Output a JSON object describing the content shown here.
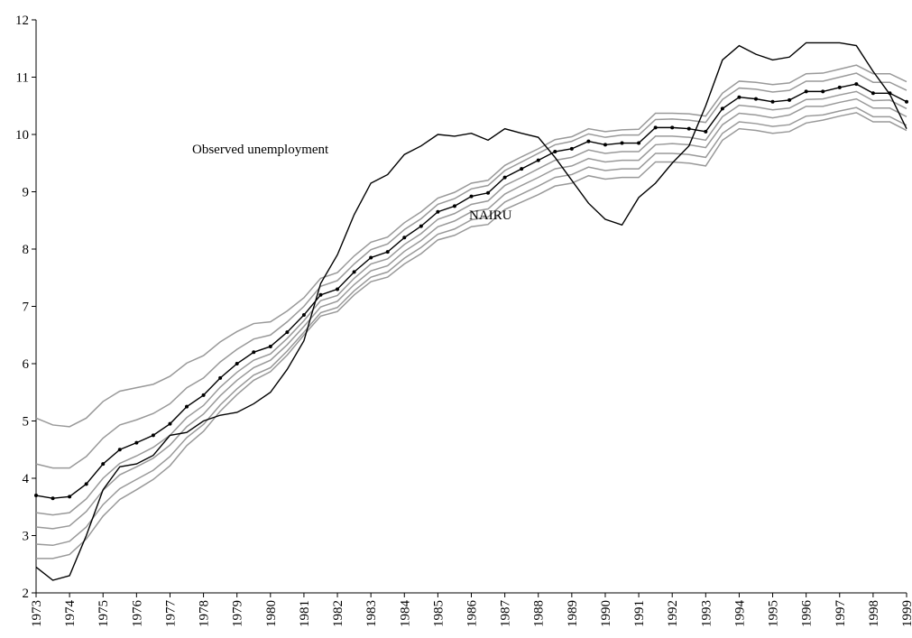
{
  "chart_data": {
    "type": "line",
    "x": [
      1973,
      1973.5,
      1974,
      1974.5,
      1975,
      1975.5,
      1976,
      1976.5,
      1977,
      1977.5,
      1978,
      1978.5,
      1979,
      1979.5,
      1980,
      1980.5,
      1981,
      1981.5,
      1982,
      1982.5,
      1983,
      1983.5,
      1984,
      1984.5,
      1985,
      1985.5,
      1986,
      1986.5,
      1987,
      1987.5,
      1988,
      1988.5,
      1989,
      1989.5,
      1990,
      1990.5,
      1991,
      1991.5,
      1992,
      1992.5,
      1993,
      1993.5,
      1994,
      1994.5,
      1995,
      1995.5,
      1996,
      1996.5,
      1997,
      1997.5,
      1998,
      1998.5,
      1999
    ],
    "xlim": [
      1973,
      1999
    ],
    "xticks": [
      1973,
      1974,
      1975,
      1976,
      1977,
      1978,
      1979,
      1980,
      1981,
      1982,
      1983,
      1984,
      1985,
      1986,
      1987,
      1988,
      1989,
      1990,
      1991,
      1992,
      1993,
      1994,
      1995,
      1996,
      1997,
      1998,
      1999
    ],
    "ylim": [
      2,
      12
    ],
    "yticks": [
      2,
      3,
      4,
      5,
      6,
      7,
      8,
      9,
      10,
      11,
      12
    ],
    "series": [
      {
        "name": "Observed unemployment",
        "color": "#000000",
        "values": [
          2.45,
          2.22,
          2.3,
          3.0,
          3.8,
          4.2,
          4.25,
          4.4,
          4.75,
          4.8,
          5.0,
          5.1,
          5.15,
          5.3,
          5.5,
          5.9,
          6.4,
          7.4,
          7.9,
          8.6,
          9.15,
          9.3,
          9.65,
          9.8,
          10.0,
          9.97,
          10.02,
          9.9,
          10.1,
          10.02,
          9.95,
          9.6,
          9.2,
          8.8,
          8.52,
          8.42,
          8.9,
          9.15,
          9.5,
          9.8,
          10.5,
          11.3,
          11.55,
          11.4,
          11.3,
          11.35,
          11.6,
          11.6,
          11.6,
          11.55,
          11.1,
          10.7,
          10.1
        ]
      },
      {
        "name": "NAIRU",
        "color": "#000000",
        "markers": true,
        "values": [
          3.7,
          3.65,
          3.68,
          3.9,
          4.25,
          4.5,
          4.62,
          4.75,
          4.95,
          5.25,
          5.45,
          5.75,
          6.0,
          6.2,
          6.3,
          6.55,
          6.85,
          7.2,
          7.3,
          7.6,
          7.85,
          7.95,
          8.2,
          8.4,
          8.65,
          8.75,
          8.92,
          8.98,
          9.25,
          9.4,
          9.55,
          9.7,
          9.75,
          9.88,
          9.82,
          9.85,
          9.85,
          10.12,
          10.12,
          10.1,
          10.05,
          10.45,
          10.65,
          10.62,
          10.57,
          10.6,
          10.75,
          10.75,
          10.82,
          10.88,
          10.72,
          10.72,
          10.57
        ]
      },
      {
        "color": "#999999",
        "values": [
          5.05,
          4.93,
          4.9,
          5.05,
          5.34,
          5.52,
          5.58,
          5.64,
          5.78,
          6.01,
          6.14,
          6.38,
          6.56,
          6.7,
          6.73,
          6.92,
          7.15,
          7.49,
          7.59,
          7.88,
          8.12,
          8.21,
          8.46,
          8.65,
          8.89,
          8.99,
          9.15,
          9.2,
          9.46,
          9.61,
          9.75,
          9.91,
          9.96,
          10.1,
          10.05,
          10.08,
          10.09,
          10.37,
          10.37,
          10.36,
          10.32,
          10.72,
          10.93,
          10.91,
          10.87,
          10.9,
          11.06,
          11.07,
          11.14,
          11.21,
          11.06,
          11.06,
          10.92
        ]
      },
      {
        "color": "#999999",
        "values": [
          4.25,
          4.18,
          4.18,
          4.38,
          4.7,
          4.93,
          5.02,
          5.13,
          5.3,
          5.58,
          5.75,
          6.03,
          6.25,
          6.43,
          6.5,
          6.73,
          7.0,
          7.35,
          7.45,
          7.74,
          7.99,
          8.09,
          8.34,
          8.53,
          8.78,
          8.88,
          9.05,
          9.11,
          9.37,
          9.52,
          9.67,
          9.82,
          9.88,
          10.01,
          9.95,
          9.99,
          9.99,
          10.26,
          10.27,
          10.25,
          10.21,
          10.61,
          10.81,
          10.79,
          10.74,
          10.77,
          10.93,
          10.93,
          11.0,
          11.07,
          10.91,
          10.91,
          10.77
        ]
      },
      {
        "color": "#999999",
        "values": [
          3.4,
          3.36,
          3.4,
          3.64,
          4.0,
          4.26,
          4.39,
          4.54,
          4.75,
          5.06,
          5.27,
          5.59,
          5.85,
          6.06,
          6.17,
          6.44,
          6.75,
          7.1,
          7.19,
          7.49,
          7.74,
          7.83,
          8.08,
          8.27,
          8.52,
          8.62,
          8.78,
          8.84,
          9.11,
          9.25,
          9.4,
          9.55,
          9.6,
          9.73,
          9.67,
          9.7,
          9.7,
          9.97,
          9.97,
          9.95,
          9.9,
          10.31,
          10.51,
          10.48,
          10.43,
          10.46,
          10.61,
          10.62,
          10.69,
          10.75,
          10.59,
          10.6,
          10.45
        ]
      },
      {
        "color": "#999999",
        "values": [
          3.15,
          3.12,
          3.17,
          3.42,
          3.79,
          4.06,
          4.2,
          4.35,
          4.58,
          4.9,
          5.12,
          5.44,
          5.71,
          5.93,
          6.06,
          6.33,
          6.65,
          6.99,
          7.09,
          7.38,
          7.62,
          7.71,
          7.96,
          8.15,
          8.39,
          8.49,
          8.65,
          8.7,
          8.96,
          9.11,
          9.25,
          9.4,
          9.45,
          9.58,
          9.52,
          9.55,
          9.55,
          9.82,
          9.84,
          9.82,
          9.77,
          10.17,
          10.37,
          10.34,
          10.29,
          10.34,
          10.49,
          10.49,
          10.56,
          10.62,
          10.46,
          10.46,
          10.31
        ]
      },
      {
        "color": "#999999",
        "values": [
          2.85,
          2.83,
          2.9,
          3.15,
          3.54,
          3.82,
          3.98,
          4.14,
          4.38,
          4.71,
          4.94,
          5.28,
          5.56,
          5.8,
          5.93,
          6.22,
          6.55,
          6.89,
          6.98,
          7.27,
          7.51,
          7.6,
          7.84,
          8.03,
          8.26,
          8.35,
          8.51,
          8.56,
          8.82,
          8.96,
          9.1,
          9.25,
          9.3,
          9.43,
          9.37,
          9.4,
          9.4,
          9.67,
          9.67,
          9.65,
          9.6,
          10.02,
          10.22,
          10.19,
          10.14,
          10.17,
          10.32,
          10.34,
          10.41,
          10.47,
          10.31,
          10.31,
          10.16
        ]
      },
      {
        "color": "#999999",
        "values": [
          2.6,
          2.6,
          2.67,
          2.94,
          3.34,
          3.63,
          3.8,
          3.98,
          4.22,
          4.57,
          4.82,
          5.17,
          5.46,
          5.71,
          5.86,
          6.15,
          6.5,
          6.83,
          6.91,
          7.2,
          7.43,
          7.51,
          7.74,
          7.92,
          8.16,
          8.24,
          8.39,
          8.43,
          8.69,
          8.82,
          8.95,
          9.1,
          9.15,
          9.28,
          9.22,
          9.25,
          9.25,
          9.52,
          9.52,
          9.5,
          9.45,
          9.9,
          10.1,
          10.07,
          10.02,
          10.05,
          10.2,
          10.25,
          10.32,
          10.38,
          10.22,
          10.22,
          10.07
        ]
      }
    ]
  }
}
